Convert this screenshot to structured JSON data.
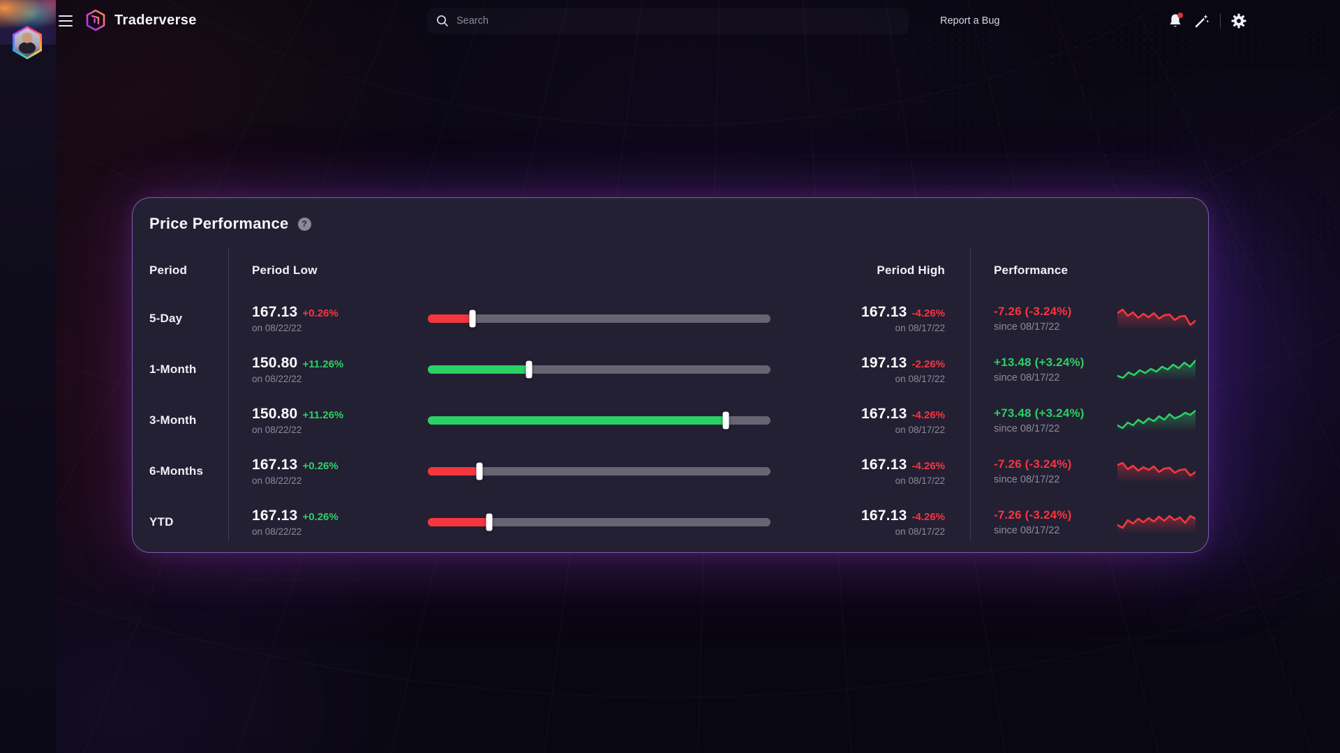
{
  "topbar": {
    "brand": "Traderverse",
    "menu_icon": "hamburger-icon",
    "search": {
      "placeholder": "Search",
      "icon": "search-icon"
    },
    "report_bug_label": "Report a Bug",
    "right_icons": [
      "bell-icon",
      "magic-wand-icon",
      "gear-icon"
    ],
    "bell_has_notification_dot": true
  },
  "sidebar": {
    "avatar": "user-avatar-hexagon"
  },
  "card": {
    "title": "Price Performance",
    "help_label": "?",
    "columns": {
      "period": "Period",
      "low": "Period Low",
      "high": "Period High",
      "performance": "Performance"
    },
    "rows": [
      {
        "period": "5-Day",
        "low": {
          "value": "167.13",
          "change": "+0.26%",
          "change_color": "red",
          "date": "on 08/22/22"
        },
        "slider": {
          "percent": 13,
          "color": "red"
        },
        "high": {
          "value": "167.13",
          "change": "-4.26%",
          "change_color": "red",
          "date": "on 08/17/22"
        },
        "performance": {
          "value": "-7.26 (-3.24%)",
          "color": "red",
          "date": "since 08/17/22"
        },
        "sparkline": {
          "color": "red",
          "trend": "down",
          "values": [
            10,
            5,
            14,
            9,
            17,
            11,
            16,
            10,
            18,
            13,
            12,
            20,
            15,
            14,
            27,
            21
          ]
        }
      },
      {
        "period": "1-Month",
        "low": {
          "value": "150.80",
          "change": "+11.26%",
          "change_color": "green",
          "date": "on 08/22/22"
        },
        "slider": {
          "percent": 29.5,
          "color": "green"
        },
        "high": {
          "value": "197.13",
          "change": "-2.26%",
          "change_color": "red",
          "date": "on 08/17/22"
        },
        "performance": {
          "value": "+13.48 (+3.24%)",
          "color": "green",
          "date": "since 08/17/22"
        },
        "sparkline": {
          "color": "green",
          "trend": "up",
          "values": [
            27,
            30,
            22,
            26,
            19,
            23,
            17,
            21,
            14,
            18,
            11,
            16,
            8,
            14,
            5
          ]
        }
      },
      {
        "period": "3-Month",
        "low": {
          "value": "150.80",
          "change": "+11.26%",
          "change_color": "green",
          "date": "on 08/22/22"
        },
        "slider": {
          "percent": 87,
          "color": "green"
        },
        "high": {
          "value": "167.13",
          "change": "-4.26%",
          "change_color": "red",
          "date": "on 08/17/22"
        },
        "performance": {
          "value": "+73.48 (+3.24%)",
          "color": "green",
          "date": "since 08/17/22"
        },
        "sparkline": {
          "color": "green",
          "trend": "up",
          "values": [
            25,
            29,
            21,
            25,
            17,
            22,
            15,
            19,
            12,
            17,
            9,
            15,
            12,
            7,
            10,
            4
          ]
        }
      },
      {
        "period": "6-Months",
        "low": {
          "value": "167.13",
          "change": "+0.26%",
          "change_color": "green",
          "date": "on 08/22/22"
        },
        "slider": {
          "percent": 15,
          "color": "red"
        },
        "high": {
          "value": "167.13",
          "change": "-4.26%",
          "change_color": "red",
          "date": "on 08/17/22"
        },
        "performance": {
          "value": "-7.26 (-3.24%)",
          "color": "red",
          "date": "since 08/17/22"
        },
        "sparkline": {
          "color": "red",
          "trend": "down",
          "values": [
            9,
            6,
            15,
            10,
            17,
            12,
            16,
            11,
            19,
            14,
            13,
            20,
            16,
            15,
            24,
            19
          ]
        }
      },
      {
        "period": "YTD",
        "low": {
          "value": "167.13",
          "change": "+0.26%",
          "change_color": "green",
          "date": "on 08/22/22"
        },
        "slider": {
          "percent": 18,
          "color": "red"
        },
        "high": {
          "value": "167.13",
          "change": "-4.26%",
          "change_color": "red",
          "date": "on 08/17/22"
        },
        "performance": {
          "value": "-7.26 (-3.24%)",
          "color": "red",
          "date": "since 08/17/22"
        },
        "sparkline": {
          "color": "red",
          "trend": "down",
          "values": [
            22,
            26,
            15,
            20,
            13,
            18,
            12,
            17,
            10,
            16,
            9,
            15,
            11,
            19,
            9,
            13
          ]
        }
      }
    ]
  },
  "colors": {
    "red": "#f6363f",
    "green": "#2bd164",
    "track": "#686573",
    "card_bg": "#232033",
    "card_border": "#7a5fae",
    "date_gray": "#8d8a9b"
  }
}
